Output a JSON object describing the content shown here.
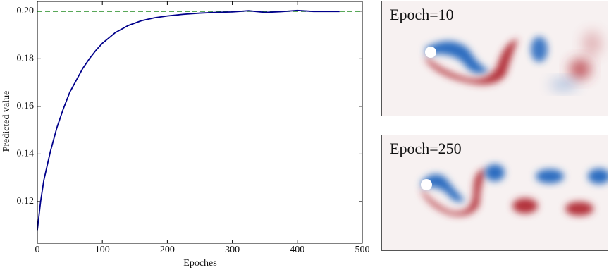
{
  "chart_data": {
    "type": "line",
    "xlabel": "Epoches",
    "ylabel": "Predicted value",
    "x": [
      0,
      5,
      10,
      20,
      30,
      40,
      50,
      60,
      70,
      80,
      90,
      100,
      120,
      140,
      160,
      180,
      200,
      225,
      250,
      275,
      300,
      325,
      350,
      375,
      400,
      425,
      450,
      465
    ],
    "values": [
      0.108,
      0.12,
      0.129,
      0.141,
      0.151,
      0.159,
      0.166,
      0.171,
      0.176,
      0.18,
      0.1835,
      0.1865,
      0.191,
      0.194,
      0.196,
      0.1972,
      0.198,
      0.1987,
      0.1992,
      0.1995,
      0.1997,
      0.2002,
      0.1995,
      0.1998,
      0.2003,
      0.1999,
      0.1999,
      0.1999
    ],
    "color": "#00008b",
    "hline": {
      "value": 0.2,
      "color": "#228b22"
    },
    "xlim": [
      0,
      500
    ],
    "xticks": [
      0,
      100,
      200,
      300,
      400,
      500
    ],
    "ylim": [
      0.1025,
      0.2041
    ],
    "yticks": [
      0.12,
      0.14,
      0.16,
      0.18,
      {
        "value": 0.2,
        "label": "0.20"
      }
    ]
  },
  "panels": [
    {
      "label": "Epoch=10"
    },
    {
      "label": "Epoch=250"
    }
  ]
}
